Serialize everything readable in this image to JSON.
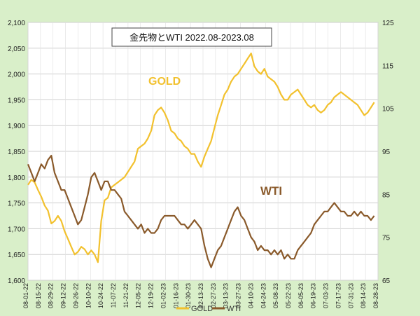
{
  "chart_data": {
    "type": "line",
    "title": "金先物とWTI  2022.08-2023.08",
    "y_left": {
      "min": 1600,
      "max": 2100,
      "step": 50,
      "ticks": [
        "1,600",
        "1,650",
        "1,700",
        "1,750",
        "1,800",
        "1,850",
        "1,900",
        "1,950",
        "2,000",
        "2,050",
        "2,100"
      ]
    },
    "y_right": {
      "min": 65,
      "max": 125,
      "step": 10,
      "ticks": [
        "65",
        "75",
        "85",
        "95",
        "105",
        "115",
        "125"
      ]
    },
    "x_ticks": [
      "08-01-22",
      "08-15-22",
      "08-29-22",
      "09-12-22",
      "09-26-22",
      "10-10-22",
      "10-24-22",
      "11-07-22",
      "11-21-22",
      "12-05-22",
      "12-19-22",
      "01-02-23",
      "01-16-23",
      "01-30-23",
      "02-13-23",
      "02-27-23",
      "03-13-23",
      "03-27-23",
      "04-10-23",
      "04-24-23",
      "05-08-23",
      "05-22-23",
      "06-05-23",
      "06-19-23",
      "07-03-23",
      "07-17-23",
      "07-31-23",
      "08-14-23",
      "08-28-23"
    ],
    "grid": true,
    "annotations": {
      "gold": "GOLD",
      "wti": "WTI"
    },
    "legend": {
      "position": "bottom",
      "items": [
        {
          "name": "GOLD",
          "color": "#f2c12e"
        },
        {
          "name": "WTI",
          "color": "#8a5a2b"
        }
      ]
    },
    "series": [
      {
        "name": "GOLD",
        "axis": "left",
        "color": "#f2c12e",
        "points": [
          [
            0,
            1785
          ],
          [
            0.5,
            1795
          ],
          [
            1,
            1790
          ],
          [
            1.5,
            1775
          ],
          [
            2,
            1762
          ],
          [
            2.5,
            1745
          ],
          [
            3,
            1735
          ],
          [
            3.5,
            1710
          ],
          [
            4,
            1715
          ],
          [
            4.5,
            1725
          ],
          [
            5,
            1715
          ],
          [
            5.5,
            1695
          ],
          [
            6,
            1680
          ],
          [
            6.5,
            1665
          ],
          [
            7,
            1650
          ],
          [
            7.5,
            1655
          ],
          [
            8,
            1665
          ],
          [
            8.5,
            1660
          ],
          [
            9,
            1650
          ],
          [
            9.5,
            1658
          ],
          [
            10,
            1650
          ],
          [
            10.5,
            1635
          ],
          [
            11,
            1715
          ],
          [
            11.5,
            1755
          ],
          [
            12,
            1760
          ],
          [
            12.5,
            1780
          ],
          [
            13,
            1785
          ],
          [
            13.5,
            1790
          ],
          [
            14,
            1795
          ],
          [
            14.5,
            1800
          ],
          [
            15,
            1810
          ],
          [
            15.5,
            1820
          ],
          [
            16,
            1830
          ],
          [
            16.5,
            1855
          ],
          [
            17,
            1860
          ],
          [
            17.5,
            1865
          ],
          [
            18,
            1875
          ],
          [
            18.5,
            1890
          ],
          [
            19,
            1920
          ],
          [
            19.5,
            1930
          ],
          [
            20,
            1935
          ],
          [
            20.5,
            1925
          ],
          [
            21,
            1910
          ],
          [
            21.5,
            1890
          ],
          [
            22,
            1885
          ],
          [
            22.5,
            1875
          ],
          [
            23,
            1870
          ],
          [
            23.5,
            1860
          ],
          [
            24,
            1855
          ],
          [
            24.5,
            1845
          ],
          [
            25,
            1845
          ],
          [
            25.5,
            1830
          ],
          [
            26,
            1820
          ],
          [
            26.5,
            1840
          ],
          [
            27,
            1855
          ],
          [
            27.5,
            1870
          ],
          [
            28,
            1895
          ],
          [
            28.5,
            1920
          ],
          [
            29,
            1940
          ],
          [
            29.5,
            1960
          ],
          [
            30,
            1970
          ],
          [
            30.5,
            1985
          ],
          [
            31,
            1995
          ],
          [
            31.5,
            2000
          ],
          [
            32,
            2010
          ],
          [
            32.5,
            2020
          ],
          [
            33,
            2030
          ],
          [
            33.5,
            2040
          ],
          [
            34,
            2015
          ],
          [
            34.5,
            2005
          ],
          [
            35,
            2000
          ],
          [
            35.5,
            2010
          ],
          [
            36,
            1995
          ],
          [
            36.5,
            1990
          ],
          [
            37,
            1985
          ],
          [
            37.5,
            1975
          ],
          [
            38,
            1960
          ],
          [
            38.5,
            1950
          ],
          [
            39,
            1950
          ],
          [
            39.5,
            1960
          ],
          [
            40,
            1965
          ],
          [
            40.5,
            1970
          ],
          [
            41,
            1960
          ],
          [
            41.5,
            1950
          ],
          [
            42,
            1940
          ],
          [
            42.5,
            1935
          ],
          [
            43,
            1940
          ],
          [
            43.5,
            1930
          ],
          [
            44,
            1925
          ],
          [
            44.5,
            1930
          ],
          [
            45,
            1940
          ],
          [
            45.5,
            1945
          ],
          [
            46,
            1955
          ],
          [
            46.5,
            1960
          ],
          [
            47,
            1965
          ],
          [
            47.5,
            1960
          ],
          [
            48,
            1955
          ],
          [
            48.5,
            1950
          ],
          [
            49,
            1945
          ],
          [
            49.5,
            1940
          ],
          [
            50,
            1930
          ],
          [
            50.5,
            1920
          ],
          [
            51,
            1925
          ],
          [
            51.5,
            1935
          ],
          [
            52,
            1945
          ]
        ]
      },
      {
        "name": "WTI",
        "axis": "right",
        "color": "#8a5a2b",
        "points": [
          [
            0,
            92
          ],
          [
            0.5,
            90
          ],
          [
            1,
            88
          ],
          [
            1.5,
            90
          ],
          [
            2,
            92
          ],
          [
            2.5,
            91
          ],
          [
            3,
            93
          ],
          [
            3.5,
            94
          ],
          [
            4,
            90
          ],
          [
            4.5,
            88
          ],
          [
            5,
            86
          ],
          [
            5.5,
            86
          ],
          [
            6,
            84
          ],
          [
            6.5,
            82
          ],
          [
            7,
            80
          ],
          [
            7.5,
            78
          ],
          [
            8,
            79
          ],
          [
            8.5,
            82
          ],
          [
            9,
            85
          ],
          [
            9.5,
            89
          ],
          [
            10,
            90
          ],
          [
            10.5,
            88
          ],
          [
            11,
            86
          ],
          [
            11.5,
            88
          ],
          [
            12,
            88
          ],
          [
            12.5,
            86
          ],
          [
            13,
            86
          ],
          [
            13.5,
            85
          ],
          [
            14,
            84
          ],
          [
            14.5,
            81
          ],
          [
            15,
            80
          ],
          [
            15.5,
            79
          ],
          [
            16,
            78
          ],
          [
            16.5,
            77
          ],
          [
            17,
            78
          ],
          [
            17.5,
            76
          ],
          [
            18,
            77
          ],
          [
            18.5,
            76
          ],
          [
            19,
            76
          ],
          [
            19.5,
            77
          ],
          [
            20,
            79
          ],
          [
            20.5,
            80
          ],
          [
            21,
            80
          ],
          [
            21.5,
            80
          ],
          [
            22,
            80
          ],
          [
            22.5,
            79
          ],
          [
            23,
            78
          ],
          [
            23.5,
            78
          ],
          [
            24,
            77
          ],
          [
            24.5,
            78
          ],
          [
            25,
            79
          ],
          [
            25.5,
            78
          ],
          [
            26,
            77
          ],
          [
            26.5,
            73
          ],
          [
            27,
            70
          ],
          [
            27.5,
            68
          ],
          [
            28,
            70
          ],
          [
            28.5,
            72
          ],
          [
            29,
            73
          ],
          [
            29.5,
            75
          ],
          [
            30,
            77
          ],
          [
            30.5,
            79
          ],
          [
            31,
            81
          ],
          [
            31.5,
            82
          ],
          [
            32,
            80
          ],
          [
            32.5,
            79
          ],
          [
            33,
            77
          ],
          [
            33.5,
            75
          ],
          [
            34,
            74
          ],
          [
            34.5,
            72
          ],
          [
            35,
            73
          ],
          [
            35.5,
            72
          ],
          [
            36,
            72
          ],
          [
            36.5,
            71
          ],
          [
            37,
            72
          ],
          [
            37.5,
            71
          ],
          [
            38,
            72
          ],
          [
            38.5,
            70
          ],
          [
            39,
            71
          ],
          [
            39.5,
            70
          ],
          [
            40,
            70
          ],
          [
            40.5,
            72
          ],
          [
            41,
            73
          ],
          [
            41.5,
            74
          ],
          [
            42,
            75
          ],
          [
            42.5,
            76
          ],
          [
            43,
            78
          ],
          [
            43.5,
            79
          ],
          [
            44,
            80
          ],
          [
            44.5,
            81
          ],
          [
            45,
            81
          ],
          [
            45.5,
            82
          ],
          [
            46,
            83
          ],
          [
            46.5,
            82
          ],
          [
            47,
            81
          ],
          [
            47.5,
            81
          ],
          [
            48,
            80
          ],
          [
            48.5,
            80
          ],
          [
            49,
            81
          ],
          [
            49.5,
            80
          ],
          [
            50,
            81
          ],
          [
            50.5,
            80
          ],
          [
            51,
            80
          ],
          [
            51.5,
            79
          ],
          [
            52,
            80
          ]
        ]
      }
    ]
  }
}
